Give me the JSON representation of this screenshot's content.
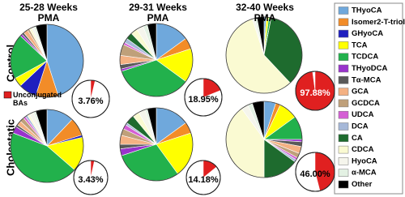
{
  "chart_data": {
    "type": "pie",
    "columns": [
      "25-28 Weeks PMA",
      "29-31 Weeks PMA",
      "32-40 Weeks PMA"
    ],
    "rows": [
      "Control",
      "Cholestatic"
    ],
    "series": [
      {
        "name": "THyoCA",
        "color": "#6fa8dc",
        "values": [
          45,
          15,
          1,
          12,
          15,
          5
        ]
      },
      {
        "name": "Isomer2-T-triol",
        "color": "#f28c28",
        "values": [
          10,
          5,
          0,
          8,
          5,
          2
        ]
      },
      {
        "name": "GHyoCA",
        "color": "#1f1fbf",
        "values": [
          8,
          0,
          0,
          1,
          0,
          0
        ]
      },
      {
        "name": "TCA",
        "color": "#ffff00",
        "values": [
          4,
          15,
          1,
          15,
          20,
          8
        ]
      },
      {
        "name": "TCDCA",
        "color": "#22b14c",
        "values": [
          20,
          35,
          1,
          44,
          30,
          10
        ]
      },
      {
        "name": "THyoDCA",
        "color": "#9933cc",
        "values": [
          1,
          1,
          0,
          3,
          3,
          1
        ]
      },
      {
        "name": "Tα-MCA",
        "color": "#595959",
        "values": [
          1,
          2,
          0,
          1,
          2,
          2
        ]
      },
      {
        "name": "GCA",
        "color": "#f4b183",
        "values": [
          2,
          4,
          0,
          2,
          4,
          3
        ]
      },
      {
        "name": "GCDCA",
        "color": "#bfa07a",
        "values": [
          1,
          5,
          0,
          2,
          3,
          2
        ]
      },
      {
        "name": "UDCA",
        "color": "#d45fd4",
        "values": [
          0,
          1,
          0,
          1,
          2,
          1
        ]
      },
      {
        "name": "DCA",
        "color": "#a6b8d8",
        "values": [
          0,
          2,
          0,
          1,
          1,
          1
        ]
      },
      {
        "name": "CA",
        "color": "#1e6b2e",
        "values": [
          0,
          3,
          35,
          0,
          4,
          15
        ]
      },
      {
        "name": "CDCA",
        "color": "#fafad2",
        "values": [
          1,
          3,
          57,
          1,
          3,
          40
        ]
      },
      {
        "name": "HyoCA",
        "color": "#f5f5ec",
        "values": [
          1,
          3,
          1,
          2,
          3,
          3
        ]
      },
      {
        "name": "α-MCA",
        "color": "#e3f1e3",
        "values": [
          1,
          2,
          1,
          1,
          1,
          2
        ]
      },
      {
        "name": "Other",
        "color": "#000000",
        "values": [
          5,
          4,
          3,
          5,
          4,
          5
        ]
      }
    ],
    "unconjugated": {
      "name": "Unconjugated BAs",
      "color": "#e02020",
      "values": [
        3.76,
        18.95,
        97.88,
        3.43,
        14.18,
        46.0
      ],
      "value_labels": [
        "3.76%",
        "18.95%",
        "97.88%",
        "3.43%",
        "14.18%",
        "46.00%"
      ]
    }
  }
}
